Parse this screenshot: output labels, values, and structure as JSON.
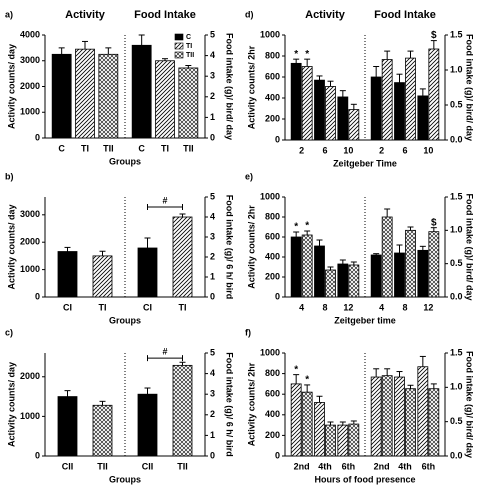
{
  "chart_data": [
    {
      "type": "bar",
      "label": "a)",
      "xlabel": "Groups",
      "ylabel": "Activity counts/ day",
      "y2label": "Food intake (g)/ bird/ day",
      "ylim": [
        0,
        4000
      ],
      "yticks": [
        0,
        1000,
        2000,
        3000,
        4000
      ],
      "y2lim": [
        0,
        5
      ],
      "y2ticks": [
        0,
        1,
        2,
        3,
        4,
        5
      ],
      "legend": [
        {
          "name": "C",
          "pattern": "solid"
        },
        {
          "name": "TI",
          "pattern": "hatch"
        },
        {
          "name": "TII",
          "pattern": "cross"
        }
      ],
      "groups": [
        {
          "title": "Activity",
          "axis": "y",
          "categories": [
            "C",
            "TI",
            "TII"
          ],
          "series": [
            {
              "values": [
                3250,
                3450,
                3250
              ],
              "errors": [
                250,
                300,
                250
              ],
              "patterns": [
                "solid",
                "hatch",
                "cross"
              ]
            }
          ]
        },
        {
          "title": "Food Intake",
          "axis": "y2",
          "categories": [
            "C",
            "TI",
            "TII"
          ],
          "series": [
            {
              "values": [
                4.5,
                3.75,
                3.4
              ],
              "errors": [
                0.5,
                0.1,
                0.12
              ],
              "patterns": [
                "solid",
                "hatch",
                "cross"
              ]
            }
          ]
        }
      ]
    },
    {
      "type": "bar",
      "label": "b)",
      "xlabel": "Groups",
      "ylabel": "Activity counts/ day",
      "y2label": "Food intake (g)/ 6 h/ bird",
      "ylim": [
        0,
        3650
      ],
      "yticks": [
        0,
        1000,
        2000,
        3000
      ],
      "y2lim": [
        0,
        5
      ],
      "y2ticks": [
        0,
        1,
        2,
        3,
        4,
        5
      ],
      "groups": [
        {
          "axis": "y",
          "categories": [
            "CI",
            "TI"
          ],
          "series": [
            {
              "values": [
                1660,
                1500
              ],
              "errors": [
                150,
                170
              ],
              "patterns": [
                "solid",
                "hatch"
              ]
            }
          ]
        },
        {
          "axis": "y2",
          "categories": [
            "CI",
            "TI"
          ],
          "series": [
            {
              "values": [
                2.45,
                4.0
              ],
              "errors": [
                0.5,
                0.15
              ],
              "patterns": [
                "solid",
                "hatch"
              ]
            }
          ],
          "bracket": {
            "text": "#",
            "value": 4.5
          }
        }
      ]
    },
    {
      "type": "bar",
      "label": "c)",
      "xlabel": "Groups",
      "ylabel": "Activity counts/ day",
      "y2label": "Food intake (g)/ 6 h/ bird",
      "ylim": [
        0,
        2600
      ],
      "yticks": [
        0,
        1000,
        2000
      ],
      "y2lim": [
        0,
        5
      ],
      "y2ticks": [
        0,
        1,
        2,
        3,
        4,
        5
      ],
      "groups": [
        {
          "axis": "y",
          "categories": [
            "CII",
            "TII"
          ],
          "series": [
            {
              "values": [
                1500,
                1280
              ],
              "errors": [
                150,
                100
              ],
              "patterns": [
                "solid",
                "cross"
              ]
            }
          ]
        },
        {
          "axis": "y2",
          "categories": [
            "CII",
            "TII"
          ],
          "series": [
            {
              "values": [
                3.0,
                4.4
              ],
              "errors": [
                0.3,
                0.15
              ],
              "patterns": [
                "solid",
                "cross"
              ]
            }
          ],
          "bracket": {
            "text": "#",
            "value": 4.75
          }
        }
      ]
    },
    {
      "type": "bar",
      "label": "d)",
      "xlabel": "Zeitgeber Time",
      "ylabel": "Activity counts/ 2hr",
      "y2label": "Food intake (g)/ bird/ day",
      "ylim": [
        0,
        1000
      ],
      "yticks": [
        0,
        200,
        400,
        600,
        800,
        1000
      ],
      "y2lim": [
        0,
        1.5
      ],
      "y2ticks": [
        {
          "value": 0,
          "label": "0.0"
        },
        0.5,
        {
          "value": 1,
          "label": "1.0"
        },
        1.5
      ],
      "groups": [
        {
          "title": "Activity",
          "axis": "y",
          "categories": [
            "2",
            "6",
            "10"
          ],
          "series": [
            {
              "pattern": "solid",
              "values": [
                730,
                570,
                410
              ],
              "errors": [
                40,
                40,
                60
              ],
              "annotations": [
                "*",
                null,
                null
              ]
            },
            {
              "pattern": "hatch",
              "values": [
                700,
                510,
                290
              ],
              "errors": [
                70,
                50,
                50
              ],
              "annotations": [
                "*",
                null,
                null
              ]
            }
          ]
        },
        {
          "title": "Food Intake",
          "axis": "y2",
          "categories": [
            "2",
            "6",
            "10"
          ],
          "series": [
            {
              "pattern": "solid",
              "values": [
                0.9,
                0.82,
                0.63
              ],
              "errors": [
                0.15,
                0.12,
                0.1
              ]
            },
            {
              "pattern": "hatch",
              "values": [
                1.15,
                1.17,
                1.3
              ],
              "errors": [
                0.12,
                0.1,
                0.12
              ],
              "annotations": [
                null,
                null,
                "$"
              ]
            }
          ]
        }
      ]
    },
    {
      "type": "bar",
      "label": "e)",
      "xlabel": "Zeitgeber time",
      "ylabel": "Activity counts/ 2hr",
      "y2label": "Food intake (g)/ bird/ day",
      "ylim": [
        0,
        1000
      ],
      "yticks": [
        0,
        200,
        400,
        600,
        800,
        1000
      ],
      "y2lim": [
        0,
        1.5
      ],
      "y2ticks": [
        {
          "value": 0,
          "label": "0.0"
        },
        0.5,
        {
          "value": 1,
          "label": "1.0"
        },
        1.5
      ],
      "groups": [
        {
          "axis": "y",
          "categories": [
            "4",
            "8",
            "12"
          ],
          "series": [
            {
              "pattern": "solid",
              "values": [
                600,
                510,
                330
              ],
              "errors": [
                50,
                60,
                40
              ],
              "annotations": [
                "*",
                null,
                null
              ]
            },
            {
              "pattern": "cross",
              "values": [
                620,
                270,
                320
              ],
              "errors": [
                40,
                30,
                30
              ],
              "annotations": [
                "*",
                null,
                null
              ]
            }
          ]
        },
        {
          "axis": "y2",
          "categories": [
            "4",
            "8",
            "12"
          ],
          "series": [
            {
              "pattern": "solid",
              "values": [
                0.63,
                0.66,
                0.7
              ],
              "errors": [
                0.02,
                0.12,
                0.06
              ]
            },
            {
              "pattern": "cross",
              "values": [
                1.2,
                1.0,
                0.98
              ],
              "errors": [
                0.12,
                0.05,
                0.06
              ],
              "annotations": [
                null,
                null,
                "$"
              ]
            }
          ]
        }
      ]
    },
    {
      "type": "bar",
      "label": "f)",
      "xlabel": "Hours of food presence",
      "ylabel": "Activity counts/ 2hr",
      "y2label": "Food intake (g)/ bird/ day",
      "ylim": [
        0,
        1000
      ],
      "yticks": [
        0,
        200,
        400,
        600,
        800,
        1000
      ],
      "y2lim": [
        0,
        1.5
      ],
      "y2ticks": [
        {
          "value": 0,
          "label": "0.0"
        },
        0.5,
        {
          "value": 1,
          "label": "1.0"
        },
        1.5
      ],
      "groups": [
        {
          "axis": "y",
          "categories": [
            "2nd",
            "4th",
            "6th"
          ],
          "series": [
            {
              "pattern": "hatch",
              "values": [
                700,
                520,
                300
              ],
              "errors": [
                90,
                60,
                30
              ],
              "annotations": [
                "*",
                null,
                null
              ]
            },
            {
              "pattern": "cross",
              "values": [
                620,
                300,
                310
              ],
              "errors": [
                70,
                30,
                30
              ],
              "annotations": [
                "*",
                null,
                null
              ]
            }
          ]
        },
        {
          "axis": "y2",
          "categories": [
            "2nd",
            "4th",
            "6th"
          ],
          "series": [
            {
              "pattern": "hatch",
              "values": [
                1.15,
                1.15,
                1.3
              ],
              "errors": [
                0.12,
                0.08,
                0.15
              ]
            },
            {
              "pattern": "cross",
              "values": [
                1.17,
                0.98,
                0.98
              ],
              "errors": [
                0.1,
                0.05,
                0.07
              ]
            }
          ]
        }
      ]
    }
  ]
}
